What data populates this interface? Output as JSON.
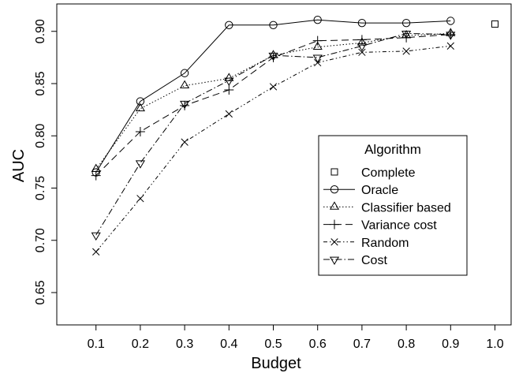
{
  "chart_data": {
    "type": "line",
    "xlabel": "Budget",
    "ylabel": "AUC",
    "xlim": [
      0.0,
      1.0
    ],
    "ylim": [
      0.64,
      0.92
    ],
    "x_ticks": [
      "0.1",
      "0.2",
      "0.3",
      "0.4",
      "0.5",
      "0.6",
      "0.7",
      "0.8",
      "0.9",
      "1.0"
    ],
    "y_ticks": [
      "0.65",
      "0.70",
      "0.75",
      "0.80",
      "0.85",
      "0.90"
    ],
    "grid": false,
    "legend": {
      "title": "Algorithm",
      "placement": "center-right"
    },
    "series": [
      {
        "name": "Complete",
        "marker": "square",
        "line": "none",
        "x": [
          1.0
        ],
        "y": [
          0.907
        ]
      },
      {
        "name": "Oracle",
        "marker": "circle",
        "line": "solid",
        "x": [
          0.1,
          0.2,
          0.3,
          0.4,
          0.5,
          0.6,
          0.7,
          0.8,
          0.9
        ],
        "y": [
          0.765,
          0.833,
          0.86,
          0.906,
          0.906,
          0.911,
          0.908,
          0.908,
          0.91
        ]
      },
      {
        "name": "Classifier based",
        "marker": "triangle-up",
        "line": "dotted",
        "x": [
          0.1,
          0.2,
          0.3,
          0.4,
          0.5,
          0.6,
          0.7,
          0.8,
          0.9
        ],
        "y": [
          0.768,
          0.826,
          0.848,
          0.855,
          0.877,
          0.885,
          0.889,
          0.896,
          0.898
        ]
      },
      {
        "name": "Variance cost",
        "marker": "plus",
        "line": "dashed",
        "x": [
          0.1,
          0.2,
          0.3,
          0.4,
          0.5,
          0.6,
          0.7,
          0.8,
          0.9
        ],
        "y": [
          0.762,
          0.804,
          0.829,
          0.844,
          0.875,
          0.891,
          0.892,
          0.894,
          0.897
        ]
      },
      {
        "name": "Random",
        "marker": "x",
        "line": "dashdotdot",
        "x": [
          0.1,
          0.2,
          0.3,
          0.4,
          0.5,
          0.6,
          0.7,
          0.8,
          0.9
        ],
        "y": [
          0.689,
          0.74,
          0.794,
          0.821,
          0.847,
          0.87,
          0.88,
          0.881,
          0.886
        ]
      },
      {
        "name": "Cost",
        "marker": "triangle-down",
        "line": "dashdot",
        "x": [
          0.1,
          0.2,
          0.3,
          0.4,
          0.5,
          0.6,
          0.7,
          0.8,
          0.9
        ],
        "y": [
          0.705,
          0.774,
          0.831,
          0.853,
          0.877,
          0.875,
          0.886,
          0.898,
          0.897
        ]
      }
    ]
  }
}
